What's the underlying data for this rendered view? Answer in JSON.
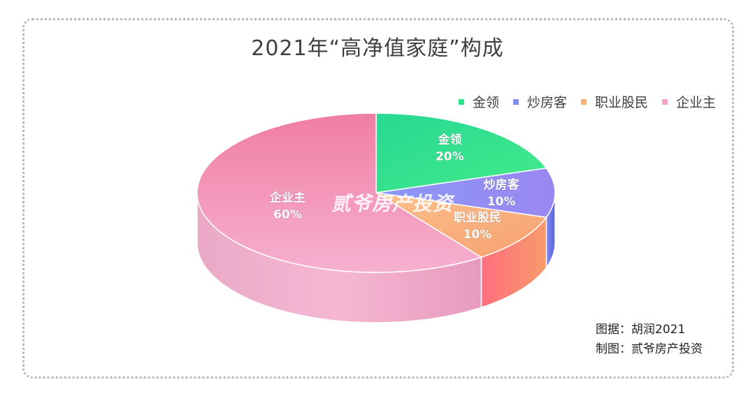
{
  "chart_data": {
    "type": "pie",
    "title": "2021年“高净值家庭”构成",
    "legend_position": "top-right",
    "slices": [
      {
        "name": "金领",
        "value": 20,
        "label": "20%",
        "color": "#2ee08a"
      },
      {
        "name": "炒房客",
        "value": 10,
        "label": "10%",
        "color": "#7f8cf0"
      },
      {
        "name": "职业股民",
        "value": 10,
        "label": "10%",
        "color": "#f9b27c"
      },
      {
        "name": "企业主",
        "value": 60,
        "label": "60%",
        "color": "#f4a6c8"
      }
    ]
  },
  "watermark": "贰爷房产投资",
  "credits": {
    "source": "图据：胡润2021",
    "maker": "制图：贰爷房产投资"
  }
}
